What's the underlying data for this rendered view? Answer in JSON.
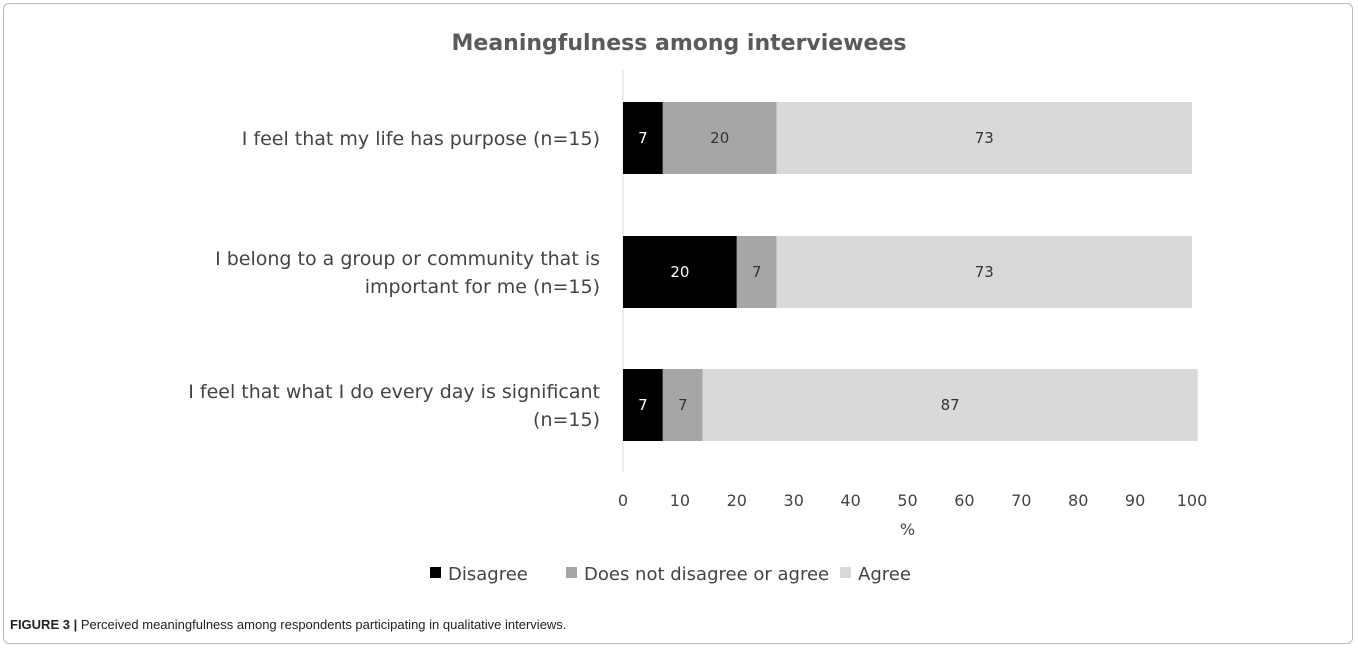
{
  "chart_data": {
    "type": "bar",
    "orientation": "horizontal",
    "stacked": true,
    "title": "Meaningfulness among interviewees",
    "xlabel": "%",
    "ylabel": "",
    "xlim": [
      0,
      100
    ],
    "xticks": [
      "0",
      "10",
      "20",
      "30",
      "40",
      "50",
      "60",
      "70",
      "80",
      "90",
      "100"
    ],
    "categories": [
      [
        "I feel that my life has purpose (n=15)"
      ],
      [
        "I belong to a group or community that is",
        "important for me (n=15)"
      ],
      [
        "I feel that what I do every day is significant",
        "(n=15)"
      ]
    ],
    "series": [
      {
        "name": "Disagree",
        "color": "#000000",
        "label_color": "#ffffff",
        "values": [
          7,
          20,
          7
        ]
      },
      {
        "name": "Does not disagree or agree",
        "color": "#a6a6a6",
        "label_color": "#333333",
        "values": [
          20,
          7,
          7
        ]
      },
      {
        "name": "Agree",
        "color": "#d9d9d9",
        "label_color": "#333333",
        "values": [
          73,
          73,
          87
        ]
      }
    ],
    "legend_position": "bottom",
    "grid": false
  },
  "caption": {
    "label": "FIGURE 3 |",
    "text": " Perceived meaningfulness among respondents participating in qualitative interviews."
  }
}
